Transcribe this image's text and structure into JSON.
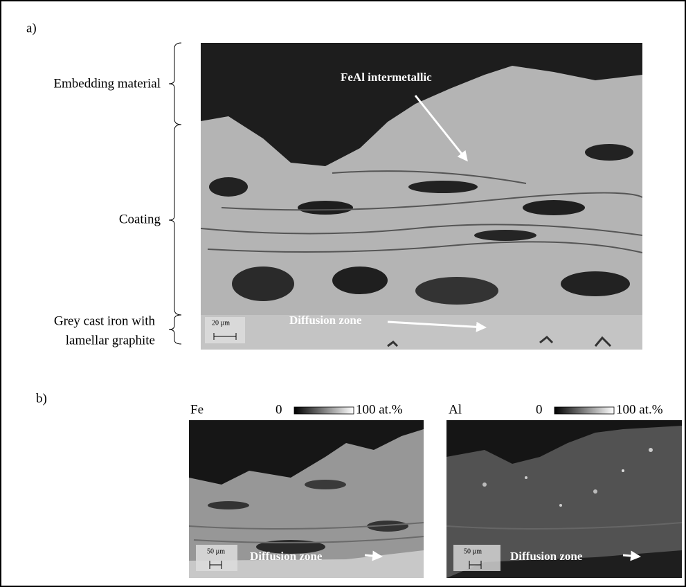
{
  "panel_a": {
    "label": "a)",
    "regions": [
      "Embedding material",
      "Coating",
      "Grey cast iron with",
      "lamellar graphite"
    ],
    "annotations": {
      "phase": "FeAl intermetallic",
      "zone": "Diffusion zone"
    },
    "scale_bar": "20 µm"
  },
  "panel_b": {
    "label": "b)",
    "maps": [
      {
        "element": "Fe",
        "scale_min": "0",
        "scale_max": "100 at.%",
        "scale_bar": "50 µm",
        "annotation": "Diffusion zone"
      },
      {
        "element": "Al",
        "scale_min": "0",
        "scale_max": "100 at.%",
        "scale_bar": "50 µm",
        "annotation": "Diffusion zone"
      }
    ]
  }
}
